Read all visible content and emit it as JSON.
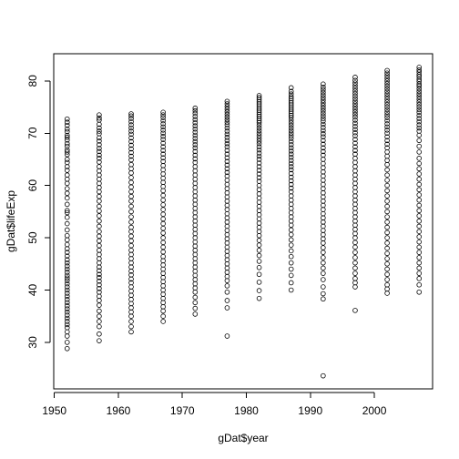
{
  "chart_data": {
    "type": "scatter",
    "title": "",
    "xlabel": "gDat$year",
    "ylabel": "gDat$lifeExp",
    "xlim": [
      1949.9,
      2009.1
    ],
    "ylim": [
      21.1,
      85.2
    ],
    "xticks": [
      1950,
      1960,
      1970,
      1980,
      1990,
      2000
    ],
    "yticks": [
      30,
      40,
      50,
      60,
      70,
      80
    ],
    "grid": false,
    "legend": "none",
    "point_style": "open-circle",
    "point_color": "#000000",
    "groups": [
      {
        "year": 1952,
        "values": [
          72.7,
          72.1,
          71.5,
          70.8,
          70.3,
          69.6,
          69.2,
          68.7,
          68.0,
          67.5,
          66.8,
          66.4,
          65.9,
          65.0,
          64.4,
          63.6,
          62.9,
          62.0,
          61.2,
          60.4,
          59.4,
          58.5,
          57.6,
          56.4,
          55.2,
          54.8,
          53.9,
          52.7,
          51.5,
          50.4,
          49.6,
          48.7,
          47.9,
          47.2,
          46.5,
          45.8,
          45.2,
          44.6,
          44.0,
          43.4,
          42.8,
          42.3,
          41.8,
          41.2,
          40.6,
          40.0,
          39.4,
          38.8,
          38.2,
          37.6,
          37.0,
          36.4,
          35.8,
          35.2,
          34.6,
          34.0,
          33.4,
          32.8,
          32.0,
          31.2,
          30.0,
          28.8
        ]
      },
      {
        "year": 1957,
        "values": [
          73.5,
          72.9,
          72.5,
          71.7,
          71.0,
          70.4,
          69.9,
          69.1,
          68.5,
          67.8,
          67.1,
          66.5,
          65.8,
          65.2,
          64.5,
          63.6,
          62.8,
          62.0,
          61.2,
          60.4,
          59.6,
          58.8,
          57.9,
          57.0,
          56.0,
          55.1,
          54.2,
          53.2,
          52.2,
          51.2,
          50.3,
          49.4,
          48.5,
          47.6,
          46.8,
          46.0,
          45.2,
          44.4,
          43.7,
          43.0,
          42.4,
          41.7,
          41.0,
          40.3,
          39.6,
          38.8,
          38.0,
          37.1,
          36.0,
          35.0,
          34.0,
          33.0,
          31.6,
          30.3
        ]
      },
      {
        "year": 1962,
        "values": [
          73.7,
          73.3,
          72.8,
          72.2,
          71.6,
          71.0,
          70.4,
          69.8,
          69.1,
          68.4,
          67.7,
          67.0,
          66.3,
          65.6,
          64.9,
          64.0,
          63.2,
          62.4,
          61.5,
          60.6,
          59.7,
          58.8,
          57.9,
          57.0,
          56.0,
          55.0,
          54.0,
          53.0,
          52.0,
          51.2,
          50.3,
          49.4,
          48.5,
          47.6,
          46.8,
          46.0,
          45.2,
          44.4,
          43.6,
          42.9,
          42.1,
          41.4,
          40.6,
          39.8,
          39.0,
          38.2,
          37.4,
          36.6,
          35.8,
          35.0,
          34.0,
          33.0,
          32.0
        ]
      },
      {
        "year": 1967,
        "values": [
          74.0,
          73.5,
          73.0,
          72.4,
          71.8,
          71.2,
          70.6,
          70.0,
          69.4,
          68.8,
          68.1,
          67.4,
          66.7,
          66.0,
          65.3,
          64.6,
          63.8,
          63.0,
          62.2,
          61.4,
          60.6,
          59.8,
          59.0,
          58.1,
          57.2,
          56.3,
          55.4,
          54.5,
          53.6,
          52.7,
          51.8,
          50.9,
          50.0,
          49.1,
          48.2,
          47.3,
          46.4,
          45.6,
          44.8,
          44.0,
          43.2,
          42.4,
          41.6,
          40.8,
          40.0,
          39.2,
          38.4,
          37.6,
          36.8,
          36.0,
          35.0,
          34.0
        ]
      },
      {
        "year": 1972,
        "values": [
          74.8,
          74.3,
          73.8,
          73.2,
          72.6,
          72.0,
          71.4,
          70.8,
          70.2,
          69.6,
          69.0,
          68.4,
          67.8,
          67.2,
          66.5,
          65.8,
          65.1,
          64.4,
          63.6,
          62.8,
          62.0,
          61.2,
          60.4,
          59.6,
          58.8,
          58.0,
          57.2,
          56.4,
          55.6,
          54.8,
          54.0,
          53.2,
          52.4,
          51.6,
          50.8,
          50.0,
          49.2,
          48.4,
          47.6,
          46.8,
          46.0,
          45.2,
          44.4,
          43.6,
          42.8,
          42.0,
          41.2,
          40.4,
          39.6,
          38.6,
          37.6,
          36.5,
          35.4
        ]
      },
      {
        "year": 1977,
        "values": [
          76.1,
          75.6,
          75.1,
          74.6,
          74.1,
          73.6,
          73.1,
          72.6,
          72.1,
          71.6,
          71.0,
          70.4,
          69.8,
          69.2,
          68.6,
          68.0,
          67.4,
          66.7,
          66.0,
          65.3,
          64.6,
          63.9,
          63.2,
          62.5,
          61.8,
          61.0,
          60.2,
          59.4,
          58.6,
          57.8,
          57.0,
          56.2,
          55.4,
          54.6,
          53.8,
          53.0,
          52.2,
          51.4,
          50.6,
          49.8,
          49.0,
          48.2,
          47.4,
          46.6,
          45.8,
          45.0,
          44.2,
          43.4,
          42.6,
          41.8,
          40.8,
          39.6,
          38.0,
          36.6,
          31.2
        ]
      },
      {
        "year": 1982,
        "values": [
          77.2,
          76.8,
          76.4,
          76.0,
          75.6,
          75.2,
          74.8,
          74.4,
          74.0,
          73.6,
          73.2,
          72.8,
          72.4,
          72.0,
          71.5,
          71.0,
          70.5,
          70.0,
          69.5,
          69.0,
          68.5,
          68.0,
          67.4,
          66.8,
          66.2,
          65.6,
          65.0,
          64.3,
          63.6,
          62.9,
          62.2,
          61.5,
          60.8,
          60.0,
          59.2,
          58.4,
          57.6,
          56.8,
          56.0,
          55.2,
          54.4,
          53.6,
          52.8,
          52.0,
          51.2,
          50.4,
          49.5,
          48.6,
          47.6,
          46.6,
          45.5,
          44.3,
          43.0,
          41.5,
          39.9,
          38.4
        ]
      },
      {
        "year": 1987,
        "values": [
          78.7,
          78.0,
          77.5,
          77.0,
          76.6,
          76.2,
          75.8,
          75.4,
          75.0,
          74.6,
          74.2,
          73.8,
          73.4,
          73.0,
          72.5,
          72.0,
          71.5,
          71.0,
          70.5,
          70.0,
          69.5,
          69.0,
          68.4,
          67.8,
          67.2,
          66.6,
          66.0,
          65.4,
          64.8,
          64.2,
          63.6,
          63.0,
          62.3,
          61.6,
          60.9,
          60.2,
          59.5,
          58.8,
          58.0,
          57.2,
          56.4,
          55.6,
          54.8,
          54.0,
          53.2,
          52.4,
          51.5,
          50.6,
          49.6,
          48.6,
          47.5,
          46.4,
          45.2,
          44.0,
          42.8,
          41.4,
          40.0
        ]
      },
      {
        "year": 1992,
        "values": [
          79.4,
          78.8,
          78.3,
          77.8,
          77.3,
          76.8,
          76.3,
          75.8,
          75.3,
          74.8,
          74.3,
          73.8,
          73.3,
          72.8,
          72.3,
          71.7,
          71.1,
          70.5,
          69.9,
          69.3,
          68.6,
          67.9,
          67.2,
          66.5,
          65.8,
          65.0,
          64.2,
          63.4,
          62.6,
          61.8,
          61.0,
          60.2,
          59.4,
          58.6,
          57.8,
          57.0,
          56.2,
          55.4,
          54.6,
          53.8,
          53.0,
          52.2,
          51.4,
          50.6,
          49.8,
          49.0,
          48.1,
          47.2,
          46.2,
          45.2,
          44.2,
          43.2,
          42.0,
          40.6,
          39.3,
          38.3,
          23.6
        ]
      },
      {
        "year": 1997,
        "values": [
          80.7,
          80.1,
          79.6,
          79.1,
          78.6,
          78.1,
          77.6,
          77.1,
          76.6,
          76.1,
          75.6,
          75.1,
          74.6,
          74.1,
          73.6,
          73.1,
          72.5,
          71.9,
          71.3,
          70.7,
          70.1,
          69.5,
          68.8,
          68.1,
          67.4,
          66.7,
          66.0,
          65.2,
          64.4,
          63.6,
          62.8,
          62.0,
          61.2,
          60.4,
          59.6,
          58.8,
          58.0,
          57.2,
          56.4,
          55.6,
          54.8,
          54.0,
          53.2,
          52.4,
          51.6,
          50.8,
          50.0,
          49.1,
          48.2,
          47.2,
          46.2,
          45.2,
          44.2,
          43.2,
          42.2,
          41.4,
          40.6,
          36.1
        ]
      },
      {
        "year": 2002,
        "values": [
          82.0,
          81.5,
          81.0,
          80.5,
          80.0,
          79.5,
          79.0,
          78.5,
          78.0,
          77.5,
          77.0,
          76.5,
          76.0,
          75.5,
          75.0,
          74.5,
          74.0,
          73.5,
          73.0,
          72.4,
          71.8,
          71.2,
          70.6,
          70.0,
          69.3,
          68.6,
          67.9,
          67.2,
          66.4,
          65.6,
          64.8,
          64.0,
          63.0,
          62.0,
          61.0,
          60.0,
          59.0,
          58.0,
          57.0,
          56.0,
          55.0,
          54.0,
          53.0,
          52.0,
          51.0,
          50.0,
          49.0,
          48.0,
          47.0,
          46.0,
          45.0,
          44.0,
          43.0,
          42.0,
          41.0,
          40.2,
          39.4
        ]
      },
      {
        "year": 2007,
        "values": [
          82.6,
          82.1,
          81.7,
          81.2,
          80.8,
          80.3,
          79.9,
          79.4,
          79.0,
          78.5,
          78.0,
          77.5,
          77.0,
          76.5,
          76.0,
          75.5,
          75.0,
          74.5,
          74.0,
          73.4,
          72.8,
          72.2,
          71.6,
          71.0,
          70.4,
          69.6,
          68.6,
          67.5,
          66.4,
          65.2,
          64.2,
          63.2,
          62.2,
          61.2,
          60.2,
          59.2,
          58.2,
          57.2,
          56.2,
          55.2,
          54.2,
          53.2,
          52.2,
          51.2,
          50.2,
          49.2,
          48.2,
          47.2,
          46.2,
          45.2,
          44.2,
          43.2,
          42.2,
          41.0,
          39.6
        ]
      }
    ]
  }
}
